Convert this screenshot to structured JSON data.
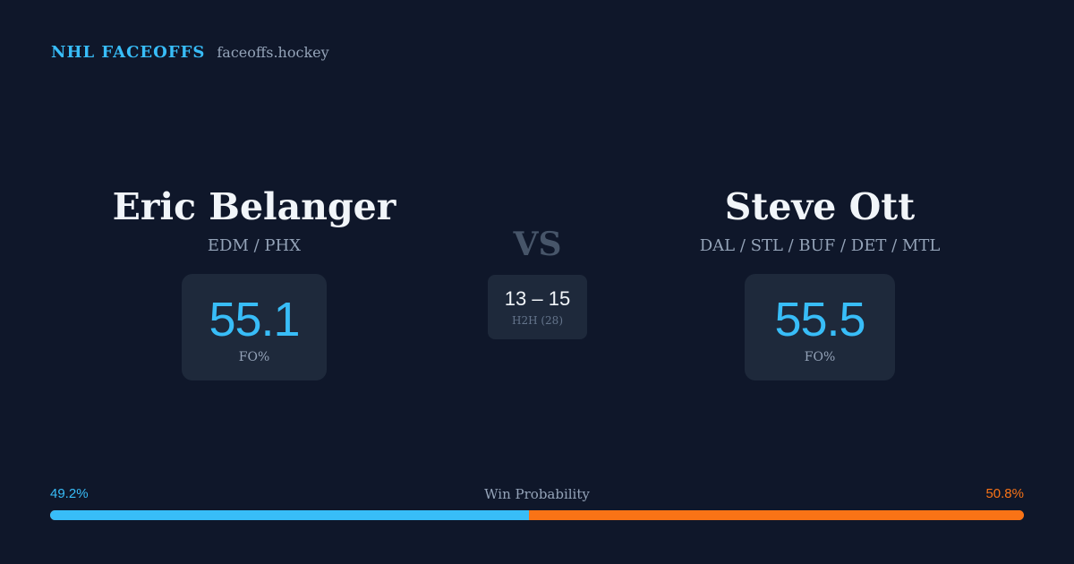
{
  "brand": {
    "name": "NHL FACEOFFS",
    "url": "faceoffs.hockey"
  },
  "player_left": {
    "name": "Eric Belanger",
    "teams": "EDM / PHX",
    "fo_pct": "55.1",
    "fo_label": "FO%"
  },
  "player_right": {
    "name": "Steve Ott",
    "teams": "DAL / STL / BUF / DET / MTL",
    "fo_pct": "55.5",
    "fo_label": "FO%"
  },
  "matchup": {
    "vs_label": "VS",
    "h2h_score": "13 – 15",
    "h2h_label": "H2H (28)"
  },
  "win_probability": {
    "title": "Win Probability",
    "left_label": "49.2%",
    "right_label": "50.8%",
    "left_value": 49.2,
    "right_value": 50.8,
    "left_color": "#38bdf8",
    "right_color": "#f97316"
  }
}
